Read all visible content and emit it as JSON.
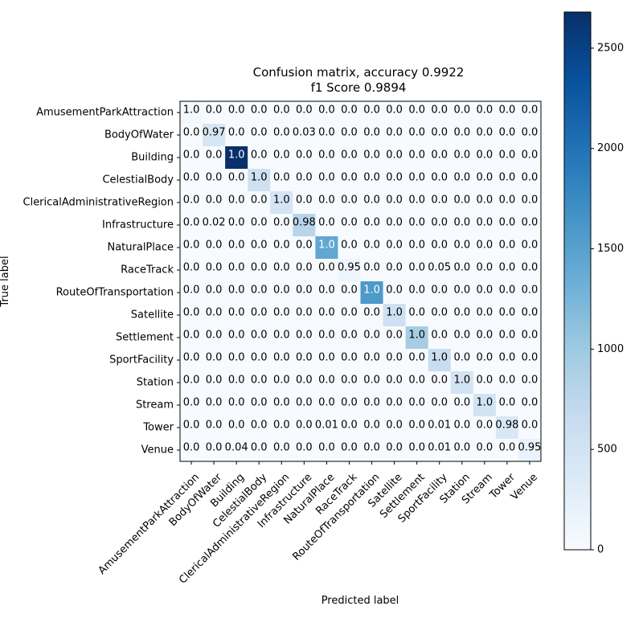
{
  "chart_data": {
    "type": "heatmap",
    "title": "Confusion matrix, accuracy 0.9922",
    "subtitle": "f1 Score 0.9894",
    "xlabel": "Predicted label",
    "ylabel": "True label",
    "labels": [
      "AmusementParkAttraction",
      "BodyOfWater",
      "Building",
      "CelestialBody",
      "ClericalAdministrativeRegion",
      "Infrastructure",
      "NaturalPlace",
      "RaceTrack",
      "RouteOfTransportation",
      "Satellite",
      "Settlement",
      "SportFacility",
      "Station",
      "Stream",
      "Tower",
      "Venue"
    ],
    "diagonal_counts": [
      60,
      450,
      2680,
      560,
      480,
      780,
      1420,
      120,
      1590,
      560,
      940,
      630,
      500,
      500,
      400,
      170
    ],
    "annotations": [
      [
        "1.0",
        "0.0",
        "0.0",
        "0.0",
        "0.0",
        "0.0",
        "0.0",
        "0.0",
        "0.0",
        "0.0",
        "0.0",
        "0.0",
        "0.0",
        "0.0",
        "0.0",
        "0.0"
      ],
      [
        "0.0",
        "0.97",
        "0.0",
        "0.0",
        "0.0",
        "0.03",
        "0.0",
        "0.0",
        "0.0",
        "0.0",
        "0.0",
        "0.0",
        "0.0",
        "0.0",
        "0.0",
        "0.0"
      ],
      [
        "0.0",
        "0.0",
        "1.0",
        "0.0",
        "0.0",
        "0.0",
        "0.0",
        "0.0",
        "0.0",
        "0.0",
        "0.0",
        "0.0",
        "0.0",
        "0.0",
        "0.0",
        "0.0"
      ],
      [
        "0.0",
        "0.0",
        "0.0",
        "1.0",
        "0.0",
        "0.0",
        "0.0",
        "0.0",
        "0.0",
        "0.0",
        "0.0",
        "0.0",
        "0.0",
        "0.0",
        "0.0",
        "0.0"
      ],
      [
        "0.0",
        "0.0",
        "0.0",
        "0.0",
        "1.0",
        "0.0",
        "0.0",
        "0.0",
        "0.0",
        "0.0",
        "0.0",
        "0.0",
        "0.0",
        "0.0",
        "0.0",
        "0.0"
      ],
      [
        "0.0",
        "0.02",
        "0.0",
        "0.0",
        "0.0",
        "0.98",
        "0.0",
        "0.0",
        "0.0",
        "0.0",
        "0.0",
        "0.0",
        "0.0",
        "0.0",
        "0.0",
        "0.0"
      ],
      [
        "0.0",
        "0.0",
        "0.0",
        "0.0",
        "0.0",
        "0.0",
        "1.0",
        "0.0",
        "0.0",
        "0.0",
        "0.0",
        "0.0",
        "0.0",
        "0.0",
        "0.0",
        "0.0"
      ],
      [
        "0.0",
        "0.0",
        "0.0",
        "0.0",
        "0.0",
        "0.0",
        "0.0",
        "0.95",
        "0.0",
        "0.0",
        "0.0",
        "0.05",
        "0.0",
        "0.0",
        "0.0",
        "0.0"
      ],
      [
        "0.0",
        "0.0",
        "0.0",
        "0.0",
        "0.0",
        "0.0",
        "0.0",
        "0.0",
        "1.0",
        "0.0",
        "0.0",
        "0.0",
        "0.0",
        "0.0",
        "0.0",
        "0.0"
      ],
      [
        "0.0",
        "0.0",
        "0.0",
        "0.0",
        "0.0",
        "0.0",
        "0.0",
        "0.0",
        "0.0",
        "1.0",
        "0.0",
        "0.0",
        "0.0",
        "0.0",
        "0.0",
        "0.0"
      ],
      [
        "0.0",
        "0.0",
        "0.0",
        "0.0",
        "0.0",
        "0.0",
        "0.0",
        "0.0",
        "0.0",
        "0.0",
        "1.0",
        "0.0",
        "0.0",
        "0.0",
        "0.0",
        "0.0"
      ],
      [
        "0.0",
        "0.0",
        "0.0",
        "0.0",
        "0.0",
        "0.0",
        "0.0",
        "0.0",
        "0.0",
        "0.0",
        "0.0",
        "1.0",
        "0.0",
        "0.0",
        "0.0",
        "0.0"
      ],
      [
        "0.0",
        "0.0",
        "0.0",
        "0.0",
        "0.0",
        "0.0",
        "0.0",
        "0.0",
        "0.0",
        "0.0",
        "0.0",
        "0.0",
        "1.0",
        "0.0",
        "0.0",
        "0.0"
      ],
      [
        "0.0",
        "0.0",
        "0.0",
        "0.0",
        "0.0",
        "0.0",
        "0.0",
        "0.0",
        "0.0",
        "0.0",
        "0.0",
        "0.0",
        "0.0",
        "1.0",
        "0.0",
        "0.0"
      ],
      [
        "0.0",
        "0.0",
        "0.0",
        "0.0",
        "0.0",
        "0.0",
        "0.01",
        "0.0",
        "0.0",
        "0.0",
        "0.0",
        "0.01",
        "0.0",
        "0.0",
        "0.98",
        "0.0"
      ],
      [
        "0.0",
        "0.0",
        "0.04",
        "0.0",
        "0.0",
        "0.0",
        "0.0",
        "0.0",
        "0.0",
        "0.0",
        "0.0",
        "0.01",
        "0.0",
        "0.0",
        "0.0",
        "0.95"
      ]
    ],
    "colorbar": {
      "colormap": "Blues",
      "range": [
        0,
        2680
      ],
      "ticks": [
        0,
        500,
        1000,
        1500,
        2000,
        2500
      ]
    }
  }
}
